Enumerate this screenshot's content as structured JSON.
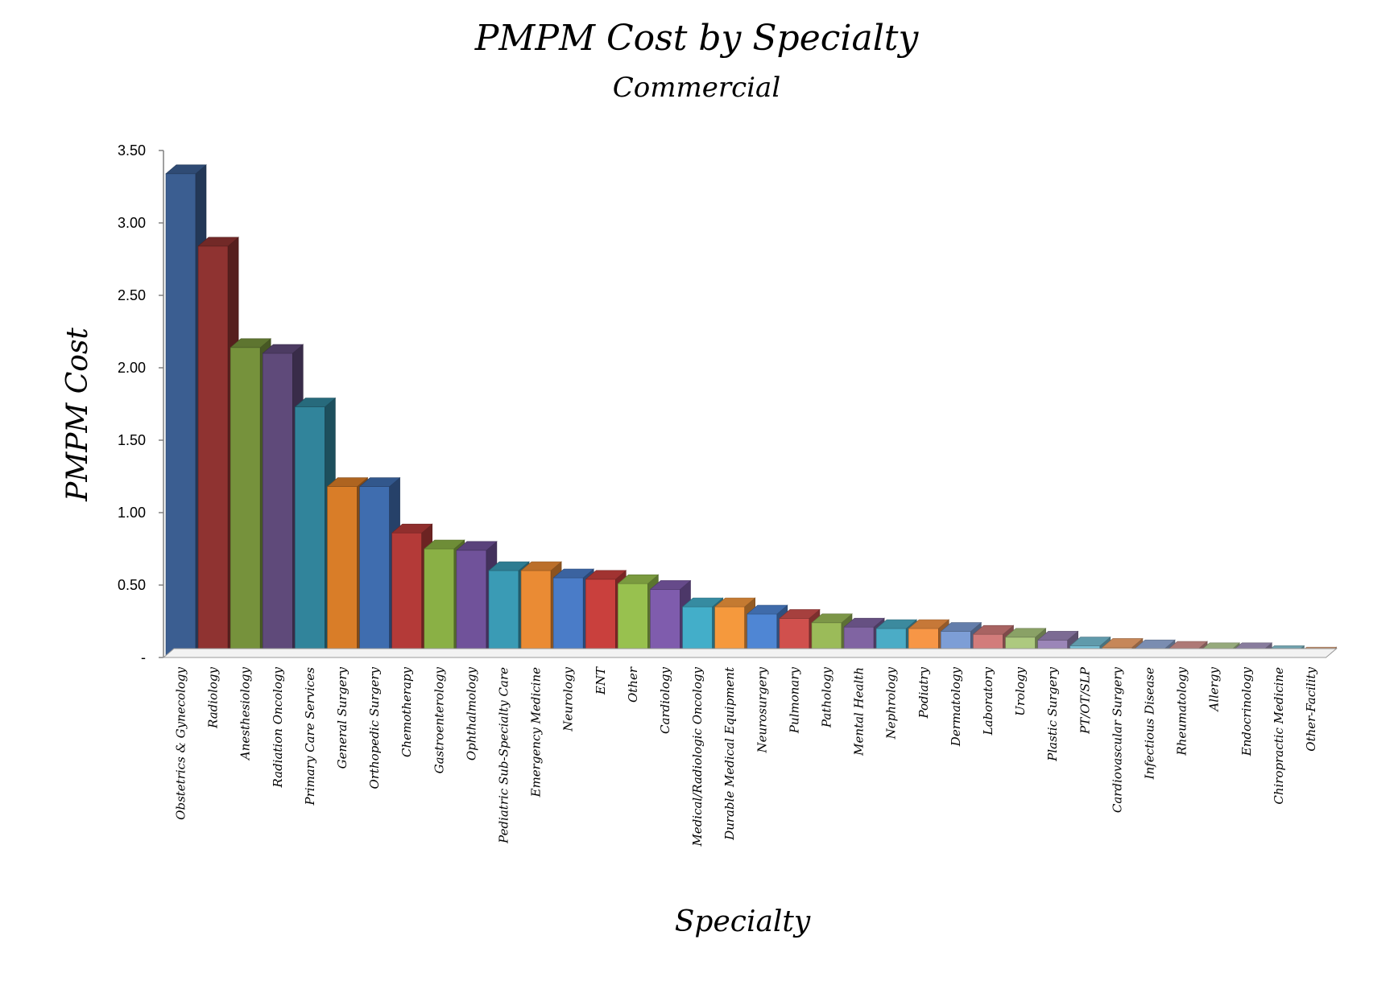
{
  "chart_data": {
    "type": "bar",
    "title": "PMPM Cost by Specialty",
    "subtitle": "Commercial",
    "xlabel": "Specialty",
    "ylabel": "PMPM Cost",
    "ylim": [
      0,
      3.5
    ],
    "yticks": [
      {
        "value": 0,
        "label": "-"
      },
      {
        "value": 0.5,
        "label": "0.50"
      },
      {
        "value": 1.0,
        "label": "1.00"
      },
      {
        "value": 1.5,
        "label": "1.50"
      },
      {
        "value": 2.0,
        "label": "2.00"
      },
      {
        "value": 2.5,
        "label": "2.50"
      },
      {
        "value": 3.0,
        "label": "3.00"
      },
      {
        "value": 3.5,
        "label": "3.50"
      }
    ],
    "grid": false,
    "bar_style": "3d",
    "categories": [
      "Obstetrics & Gynecology",
      "Radiology",
      "Anesthesiology",
      "Radiation Oncology",
      "Primary Care Services",
      "General Surgery",
      "Orthopedic Surgery",
      "Chemotherapy",
      "Gastroenterology",
      "Ophthalmology",
      "Pediatric Sub-Specialty Care",
      "Emergency Medicine",
      "Neurology",
      "ENT",
      "Other",
      "Cardiology",
      "Medical/Radiologic Oncology",
      "Durable Medical Equipment",
      "Neurosurgery",
      "Pulmonary",
      "Pathology",
      "Mental Health",
      "Nephrology",
      "Podiatry",
      "Dermatology",
      "Laboratory",
      "Urology",
      "Plastic Surgery",
      "PT/OT/SLP",
      "Cardiovascular Surgery",
      "Infectious Disease",
      "Rheumatology",
      "Allergy",
      "Endocrinology",
      "Chiropractic Medicine",
      "Other-Facility"
    ],
    "values": [
      3.34,
      2.84,
      2.14,
      2.1,
      1.73,
      1.18,
      1.18,
      0.86,
      0.75,
      0.74,
      0.6,
      0.6,
      0.55,
      0.54,
      0.51,
      0.47,
      0.35,
      0.35,
      0.3,
      0.27,
      0.24,
      0.21,
      0.2,
      0.2,
      0.18,
      0.16,
      0.14,
      0.12,
      0.08,
      0.07,
      0.06,
      0.05,
      0.04,
      0.04,
      0.02,
      0.01
    ],
    "colors": [
      "#3b5e91",
      "#8f3331",
      "#76923c",
      "#5f4a7a",
      "#31849b",
      "#d97d28",
      "#3f6daf",
      "#b43a38",
      "#8ab045",
      "#70529a",
      "#3a9bb5",
      "#ea8b34",
      "#4a7cc8",
      "#c9403d",
      "#98c14f",
      "#7f5cad",
      "#43aec9",
      "#f5993d",
      "#4f86d4",
      "#d0504d",
      "#9bbb59",
      "#8064a2",
      "#4bacc6",
      "#f79646",
      "#7d9ed6",
      "#d27c7b",
      "#adc97f",
      "#9b86b8",
      "#78c0d6",
      "#f7a96f",
      "#98b0dd",
      "#d99794",
      "#bbd49b",
      "#aa9bc4",
      "#8ccad9",
      "#f4b48a"
    ]
  }
}
